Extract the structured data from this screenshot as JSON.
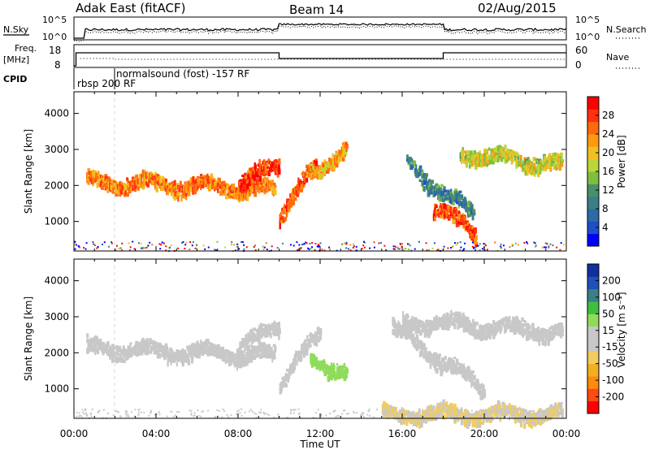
{
  "header": {
    "station": "Adak East (fitACF)",
    "beam": "Beam 14",
    "date": "02/Aug/2015"
  },
  "panels": {
    "nsky_label": "N.Sky",
    "nsky_ticks": [
      "10^5",
      "10^0"
    ],
    "nsearch_label": "N.Search",
    "nsearch_ticks": [
      "10^5",
      "10^0"
    ],
    "freq_label_line1": "Freq.",
    "freq_label_line2": "[MHz]",
    "freq_ticks": [
      "18",
      "8"
    ],
    "nave_label": "Nave",
    "nave_ticks": [
      "60",
      "0"
    ],
    "cpid_label": "CPID",
    "cpid_text1": "rbsp 200 RF",
    "cpid_text2": "normalsound (fost) -157 RF"
  },
  "chart_data": [
    {
      "type": "heatmap",
      "title": "",
      "ylabel": "Slant Range [km]",
      "xlabel": "",
      "ylim": [
        180,
        4600
      ],
      "y_ticks": [
        "4000",
        "3000",
        "2000",
        "1000"
      ],
      "colorbar": {
        "label": "Power [dB]",
        "ticks": [
          "28",
          "24",
          "20",
          "16",
          "12",
          "8",
          "4"
        ],
        "colors": [
          "#0000ff",
          "#1e4fc8",
          "#2e6aa8",
          "#3b7f86",
          "#4a8f6a",
          "#7fbf3f",
          "#bcd63a",
          "#f0c020",
          "#ff9a10",
          "#ff6a10",
          "#ff3010",
          "#ff0000"
        ]
      },
      "bands": [
        {
          "t0": 0.6,
          "t1": 9.8,
          "r_start": 2150,
          "r_end": 1900,
          "level": 24
        },
        {
          "t0": 8.0,
          "t1": 10.0,
          "r_start": 2000,
          "r_end": 2700,
          "level": 28
        },
        {
          "t0": 10.0,
          "t1": 11.8,
          "r_start": 1200,
          "r_end": 2600,
          "level": 26
        },
        {
          "t0": 11.5,
          "t1": 13.3,
          "r_start": 2400,
          "r_end": 3000,
          "level": 22
        },
        {
          "t0": 16.2,
          "t1": 19.5,
          "r_start": 2600,
          "r_end": 1200,
          "level": 10
        },
        {
          "t0": 17.5,
          "t1": 19.6,
          "r_start": 1400,
          "r_end": 700,
          "level": 26
        },
        {
          "t0": 18.8,
          "t1": 23.8,
          "r_start": 2900,
          "r_end": 2600,
          "level": 18
        }
      ]
    },
    {
      "type": "heatmap",
      "title": "",
      "ylabel": "Slant Range [km]",
      "xlabel": "Time UT",
      "ylim": [
        180,
        4600
      ],
      "y_ticks": [
        "4000",
        "3000",
        "2000",
        "1000"
      ],
      "x_ticks": [
        "00:00",
        "04:00",
        "08:00",
        "12:00",
        "16:00",
        "20:00",
        "00:00"
      ],
      "colorbar": {
        "label": "Velocity [m s⁻¹]",
        "ticks": [
          "200",
          "100",
          "50",
          "15",
          "-15",
          "-50",
          "-100",
          "-200"
        ],
        "colors": [
          "#ff0000",
          "#ff4a10",
          "#ff8a10",
          "#f2b020",
          "#f2cc60",
          "#c8c8c8",
          "#c8c8c8",
          "#8fdc5a",
          "#3fbf3f",
          "#3a7f86",
          "#2050b8",
          "#1030a0"
        ]
      },
      "bands": [
        {
          "t0": 0.6,
          "t1": 9.8,
          "r_start": 2150,
          "r_end": 1950,
          "level": -25
        },
        {
          "t0": 8.0,
          "t1": 10.0,
          "r_start": 2100,
          "r_end": 2800,
          "level": 0
        },
        {
          "t0": 10.0,
          "t1": 12.0,
          "r_start": 1200,
          "r_end": 2600,
          "level": -30
        },
        {
          "t0": 11.5,
          "t1": 13.3,
          "r_start": 1900,
          "r_end": 1400,
          "level": 60
        },
        {
          "t0": 15.5,
          "t1": 20.0,
          "r_start": 2700,
          "r_end": 1000,
          "level": 0
        },
        {
          "t0": 16.0,
          "t1": 23.8,
          "r_start": 2900,
          "r_end": 2600,
          "level": 0
        },
        {
          "t0": 15.0,
          "t1": 23.8,
          "r_start": 320,
          "r_end": 320,
          "level": -40
        }
      ]
    }
  ]
}
